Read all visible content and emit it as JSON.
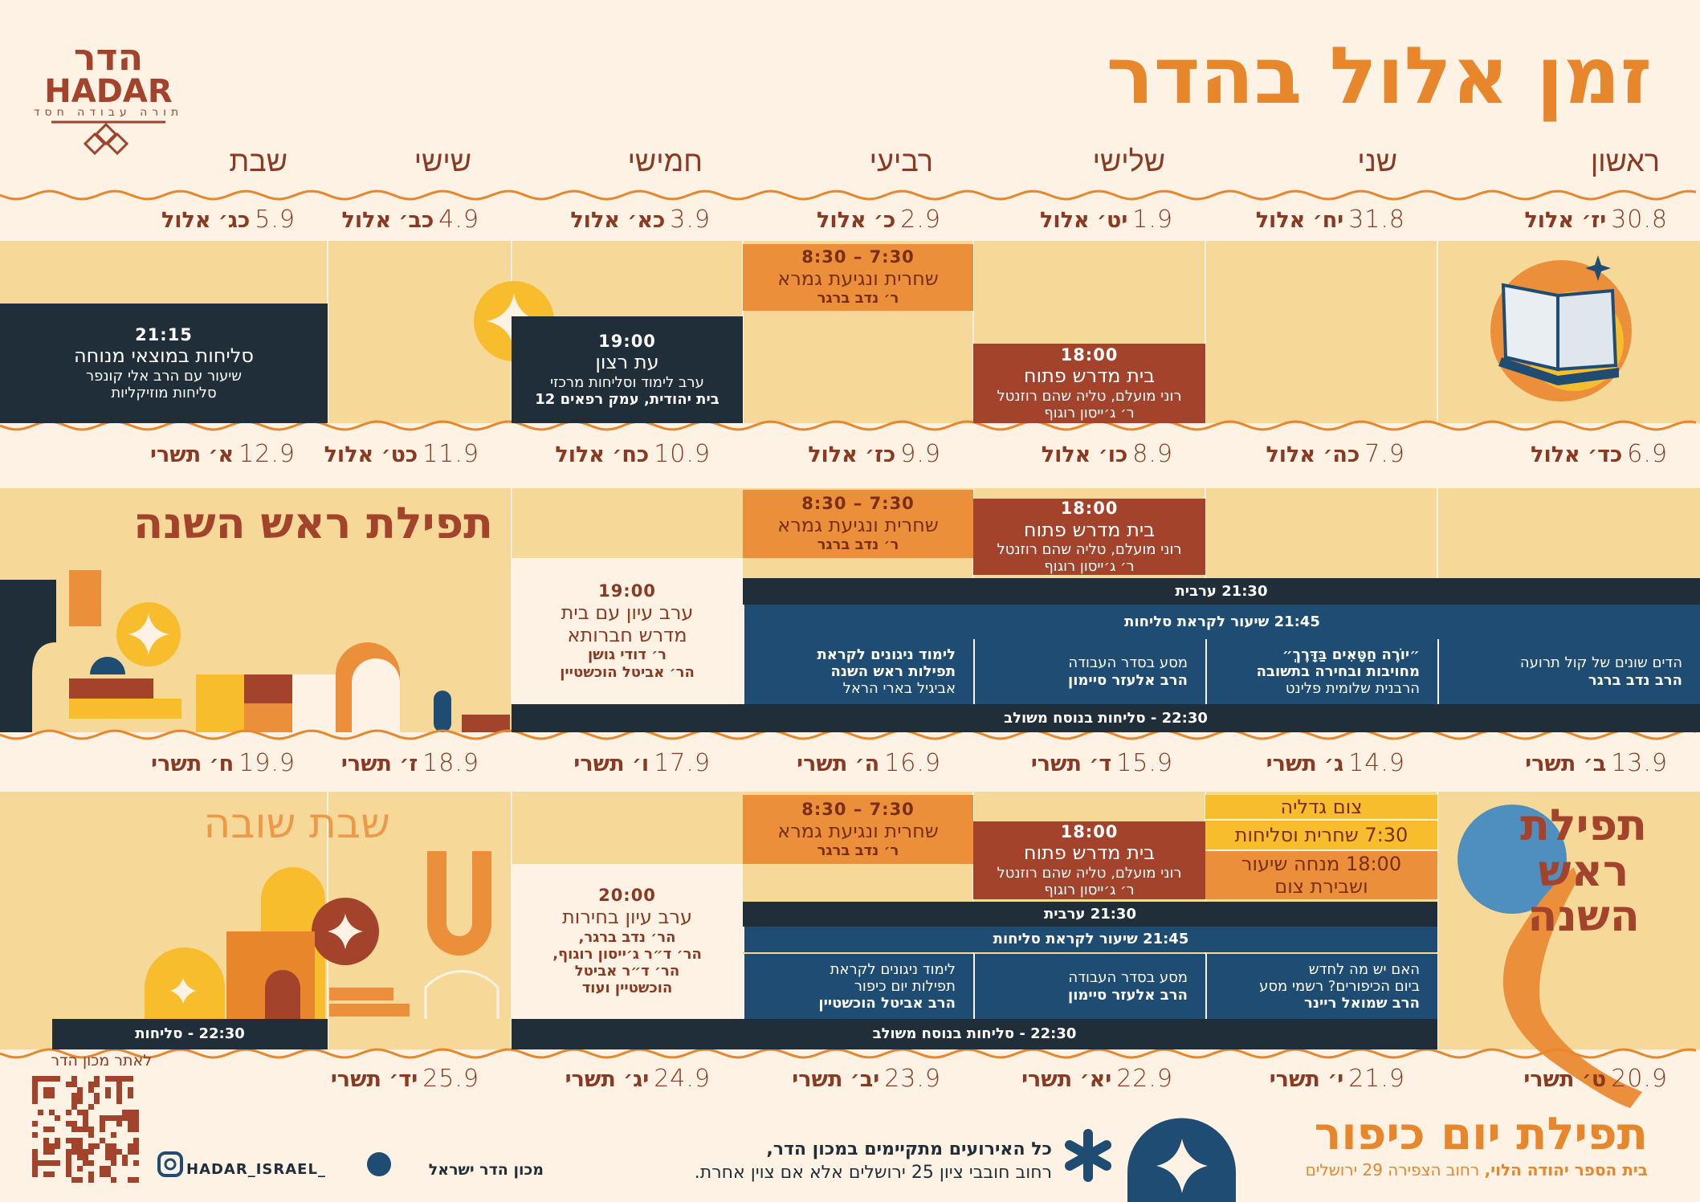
{
  "logo": {
    "hebrew": "הדר",
    "latin": "HADAR",
    "tagline": "תורה עבודה חסד"
  },
  "title": "זמן אלול בהדר",
  "weekdays": [
    "ראשון",
    "שני",
    "שלישי",
    "רביעי",
    "חמישי",
    "שישי",
    "שבת"
  ],
  "weeks": [
    {
      "days": [
        {
          "date": "30.8",
          "hebrew": "יז׳ אלול"
        },
        {
          "date": "31.8",
          "hebrew": "יח׳ אלול"
        },
        {
          "date": "1.9",
          "hebrew": "יט׳ אלול"
        },
        {
          "date": "2.9",
          "hebrew": "כ׳ אלול"
        },
        {
          "date": "3.9",
          "hebrew": "כא׳ אלול"
        },
        {
          "date": "4.9",
          "hebrew": "כב׳ אלול"
        },
        {
          "date": "5.9",
          "hebrew": "כג׳ אלול"
        }
      ],
      "events": [
        {
          "lines": [
            "7:30 – 8:30",
            "שחרית ונגיעת גמרא",
            "ר׳ נדב ברגר"
          ]
        },
        {
          "lines": [
            "18:00",
            "בית מדרש פתוח",
            "רוני מועלם, טליה שהם רוזנטל",
            "ר׳ ג׳ייסון רוגוף"
          ]
        },
        {
          "lines": [
            "19:00",
            "עת רצון",
            "ערב לימוד וסליחות מרכזי",
            "בית יהודית, עמק רפאים 12"
          ]
        },
        {
          "lines": [
            "21:15",
            "סליחות במוצאי מנוחה",
            "שיעור עם הרב אלי קונפר",
            "סליחות מוזיקליות"
          ]
        }
      ]
    },
    {
      "days": [
        {
          "date": "6.9",
          "hebrew": "כד׳ אלול"
        },
        {
          "date": "7.9",
          "hebrew": "כה׳ אלול"
        },
        {
          "date": "8.9",
          "hebrew": "כו׳ אלול"
        },
        {
          "date": "9.9",
          "hebrew": "כז׳ אלול"
        },
        {
          "date": "10.9",
          "hebrew": "כח׳ אלול"
        },
        {
          "date": "11.9",
          "hebrew": "כט׳ אלול"
        },
        {
          "date": "12.9",
          "hebrew": "א׳ תשרי"
        }
      ],
      "events": [
        {
          "lines": [
            "7:30 – 8:30",
            "שחרית ונגיעת גמרא",
            "ר׳ נדב ברגר"
          ]
        },
        {
          "lines": [
            "18:00",
            "בית מדרש פתוח",
            "רוני מועלם, טליה שהם רוזנטל",
            "ר׳ ג׳ייסון רוגוף"
          ]
        },
        {
          "lines": [
            "19:00",
            "ערב עיון עם בית",
            "מדרש חברותא",
            "ר׳ דודי גושן",
            "הר׳ אביטל הוכשטיין"
          ]
        },
        {
          "lines": [
            "21:30 ערבית"
          ]
        },
        {
          "lines": [
            "21:45 שיעור לקראת סליחות"
          ]
        },
        {
          "lines": [
            "הדים שונים של קול תרועה",
            "הרב נדב ברגר"
          ]
        },
        {
          "lines": [
            "״יוֹרֶה חַטָּאִים בַּדָּרֶךְ״",
            "מחויבות ובחירה בתשובה",
            "הרבנית שלומית פלינט"
          ]
        },
        {
          "lines": [
            "מסע בסדר העבודה",
            "הרב אלעזר סיימון"
          ]
        },
        {
          "lines": [
            "לימוד ניגונים לקראת",
            "תפילות ראש השנה",
            "אביגיל בארי הראל"
          ]
        },
        {
          "lines": [
            "22:30 - סליחות בנוסח משולב"
          ]
        }
      ]
    },
    {
      "days": [
        {
          "date": "13.9",
          "hebrew": "ב׳ תשרי"
        },
        {
          "date": "14.9",
          "hebrew": "ג׳ תשרי"
        },
        {
          "date": "15.9",
          "hebrew": "ד׳ תשרי"
        },
        {
          "date": "16.9",
          "hebrew": "ה׳ תשרי"
        },
        {
          "date": "17.9",
          "hebrew": "ו׳ תשרי"
        },
        {
          "date": "18.9",
          "hebrew": "ז׳ תשרי"
        },
        {
          "date": "19.9",
          "hebrew": "ח׳ תשרי"
        }
      ],
      "events": [
        {
          "lines": [
            "7:30 – 8:30",
            "שחרית ונגיעת גמרא",
            "ר׳ נדב ברגר"
          ]
        },
        {
          "lines": [
            "18:00",
            "בית מדרש פתוח",
            "רוני מועלם, טליה שהם רוזנטל",
            "ר׳ ג׳ייסון רוגוף"
          ]
        },
        {
          "lines": [
            "צום גדליה"
          ]
        },
        {
          "lines": [
            "7:30 שחרית וסליחות"
          ]
        },
        {
          "lines": [
            "18:00 מנחה שיעור",
            "ושבירת צום"
          ]
        },
        {
          "lines": [
            "21:30 ערבית"
          ]
        },
        {
          "lines": [
            "21:45 שיעור לקראת סליחות"
          ]
        },
        {
          "lines": [
            "האם יש מה לחדש",
            "ביום הכיפורים? רשמי מסע",
            "הרב שמואל ריינר"
          ]
        },
        {
          "lines": [
            "מסע בסדר העבודה",
            "הרב אלעזר סיימון"
          ]
        },
        {
          "lines": [
            "לימוד ניגונים לקראת",
            "תפילות יום כיפור",
            "הרב אביטל הוכשטיין"
          ]
        },
        {
          "lines": [
            "20:00",
            "ערב עיון בחירות",
            "הר׳ נדב ברגר,",
            "הר׳ ד״ר ג׳ייסון רוגוף,",
            "הר׳ ד״ר אביטל",
            "הוכשטיין ועוד"
          ]
        },
        {
          "lines": [
            "22:30 - סליחות בנוסח משולב"
          ]
        },
        {
          "lines": [
            "22:30 - סליחות"
          ]
        }
      ]
    },
    {
      "days": [
        {
          "date": "20.9",
          "hebrew": "ט׳ תשרי"
        },
        {
          "date": "21.9",
          "hebrew": "י׳ תשרי"
        },
        {
          "date": "22.9",
          "hebrew": "יא׳ תשרי"
        },
        {
          "date": "23.9",
          "hebrew": "יב׳ תשרי"
        },
        {
          "date": "24.9",
          "hebrew": "יג׳ תשרי"
        },
        {
          "date": "25.9",
          "hebrew": "יד׳ תשרי"
        }
      ],
      "events": []
    }
  ],
  "banners": {
    "rosh_hashana": "תפילת ראש השנה",
    "shabbat_shuva": "שבת שובה",
    "rosh_hashana_stacked": [
      "תפילת",
      "ראש",
      "השנה"
    ]
  },
  "footer": {
    "yom_kippur": "תפילת יום כיפור",
    "yom_kippur_school": "בית הספר יהודה הלוי,",
    "yom_kippur_address": "רחוב הצפירה 29 ירושלים",
    "notice": [
      "כל האירועים מתקיימים במכון הדר,",
      "רחוב חובבי ציון 25 ירושלים אלא אם צוין אחרת."
    ],
    "facebook": "מכון הדר ישראל",
    "instagram": "HADAR_ISRAEL_",
    "qr_label": "לאתר מכון הדר"
  }
}
